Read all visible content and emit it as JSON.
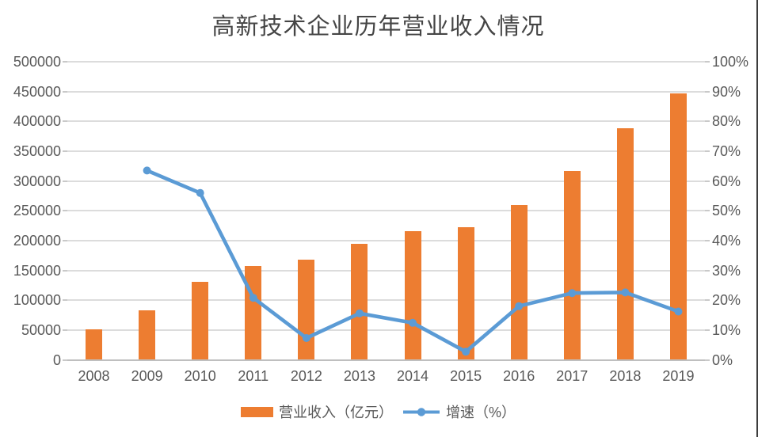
{
  "title": "高新技术企业历年营业收入情况",
  "legend": {
    "revenue_label": "营业收入（亿元）",
    "growth_label": "增速（%）"
  },
  "colors": {
    "bar": "#ED7D31",
    "line": "#5B9BD5",
    "grid": "#DCDCDC",
    "axis_line": "#BFBFBF",
    "text": "#595959",
    "title_text": "#454545",
    "border": "#3D3D3D",
    "background": "#FFFFFF"
  },
  "chart_data": {
    "type": "combo-bar-line",
    "title": "高新技术企业历年营业收入情况",
    "categories": [
      "2008",
      "2009",
      "2010",
      "2011",
      "2012",
      "2013",
      "2014",
      "2015",
      "2016",
      "2017",
      "2018",
      "2019"
    ],
    "series": [
      {
        "name": "营业收入（亿元）",
        "type": "bar",
        "axis": "left",
        "color": "#ED7D31",
        "values": [
          51000,
          83000,
          131000,
          157000,
          168000,
          194000,
          216000,
          222000,
          260000,
          317000,
          388000,
          447000
        ]
      },
      {
        "name": "增速（%）",
        "type": "line",
        "axis": "right",
        "color": "#5B9BD5",
        "values": [
          null,
          63.5,
          56.0,
          20.8,
          7.3,
          15.6,
          12.4,
          2.7,
          18.0,
          22.4,
          22.6,
          16.2
        ]
      }
    ],
    "left_axis": {
      "min": 0,
      "max": 500000,
      "step": 50000,
      "tick_labels": [
        "0",
        "50000",
        "100000",
        "150000",
        "200000",
        "250000",
        "300000",
        "350000",
        "400000",
        "450000",
        "500000"
      ]
    },
    "right_axis": {
      "min": 0,
      "max": 100,
      "step": 10,
      "tick_labels": [
        "0%",
        "10%",
        "20%",
        "30%",
        "40%",
        "50%",
        "60%",
        "70%",
        "80%",
        "90%",
        "100%"
      ]
    },
    "grid": true,
    "legend_position": "bottom"
  }
}
